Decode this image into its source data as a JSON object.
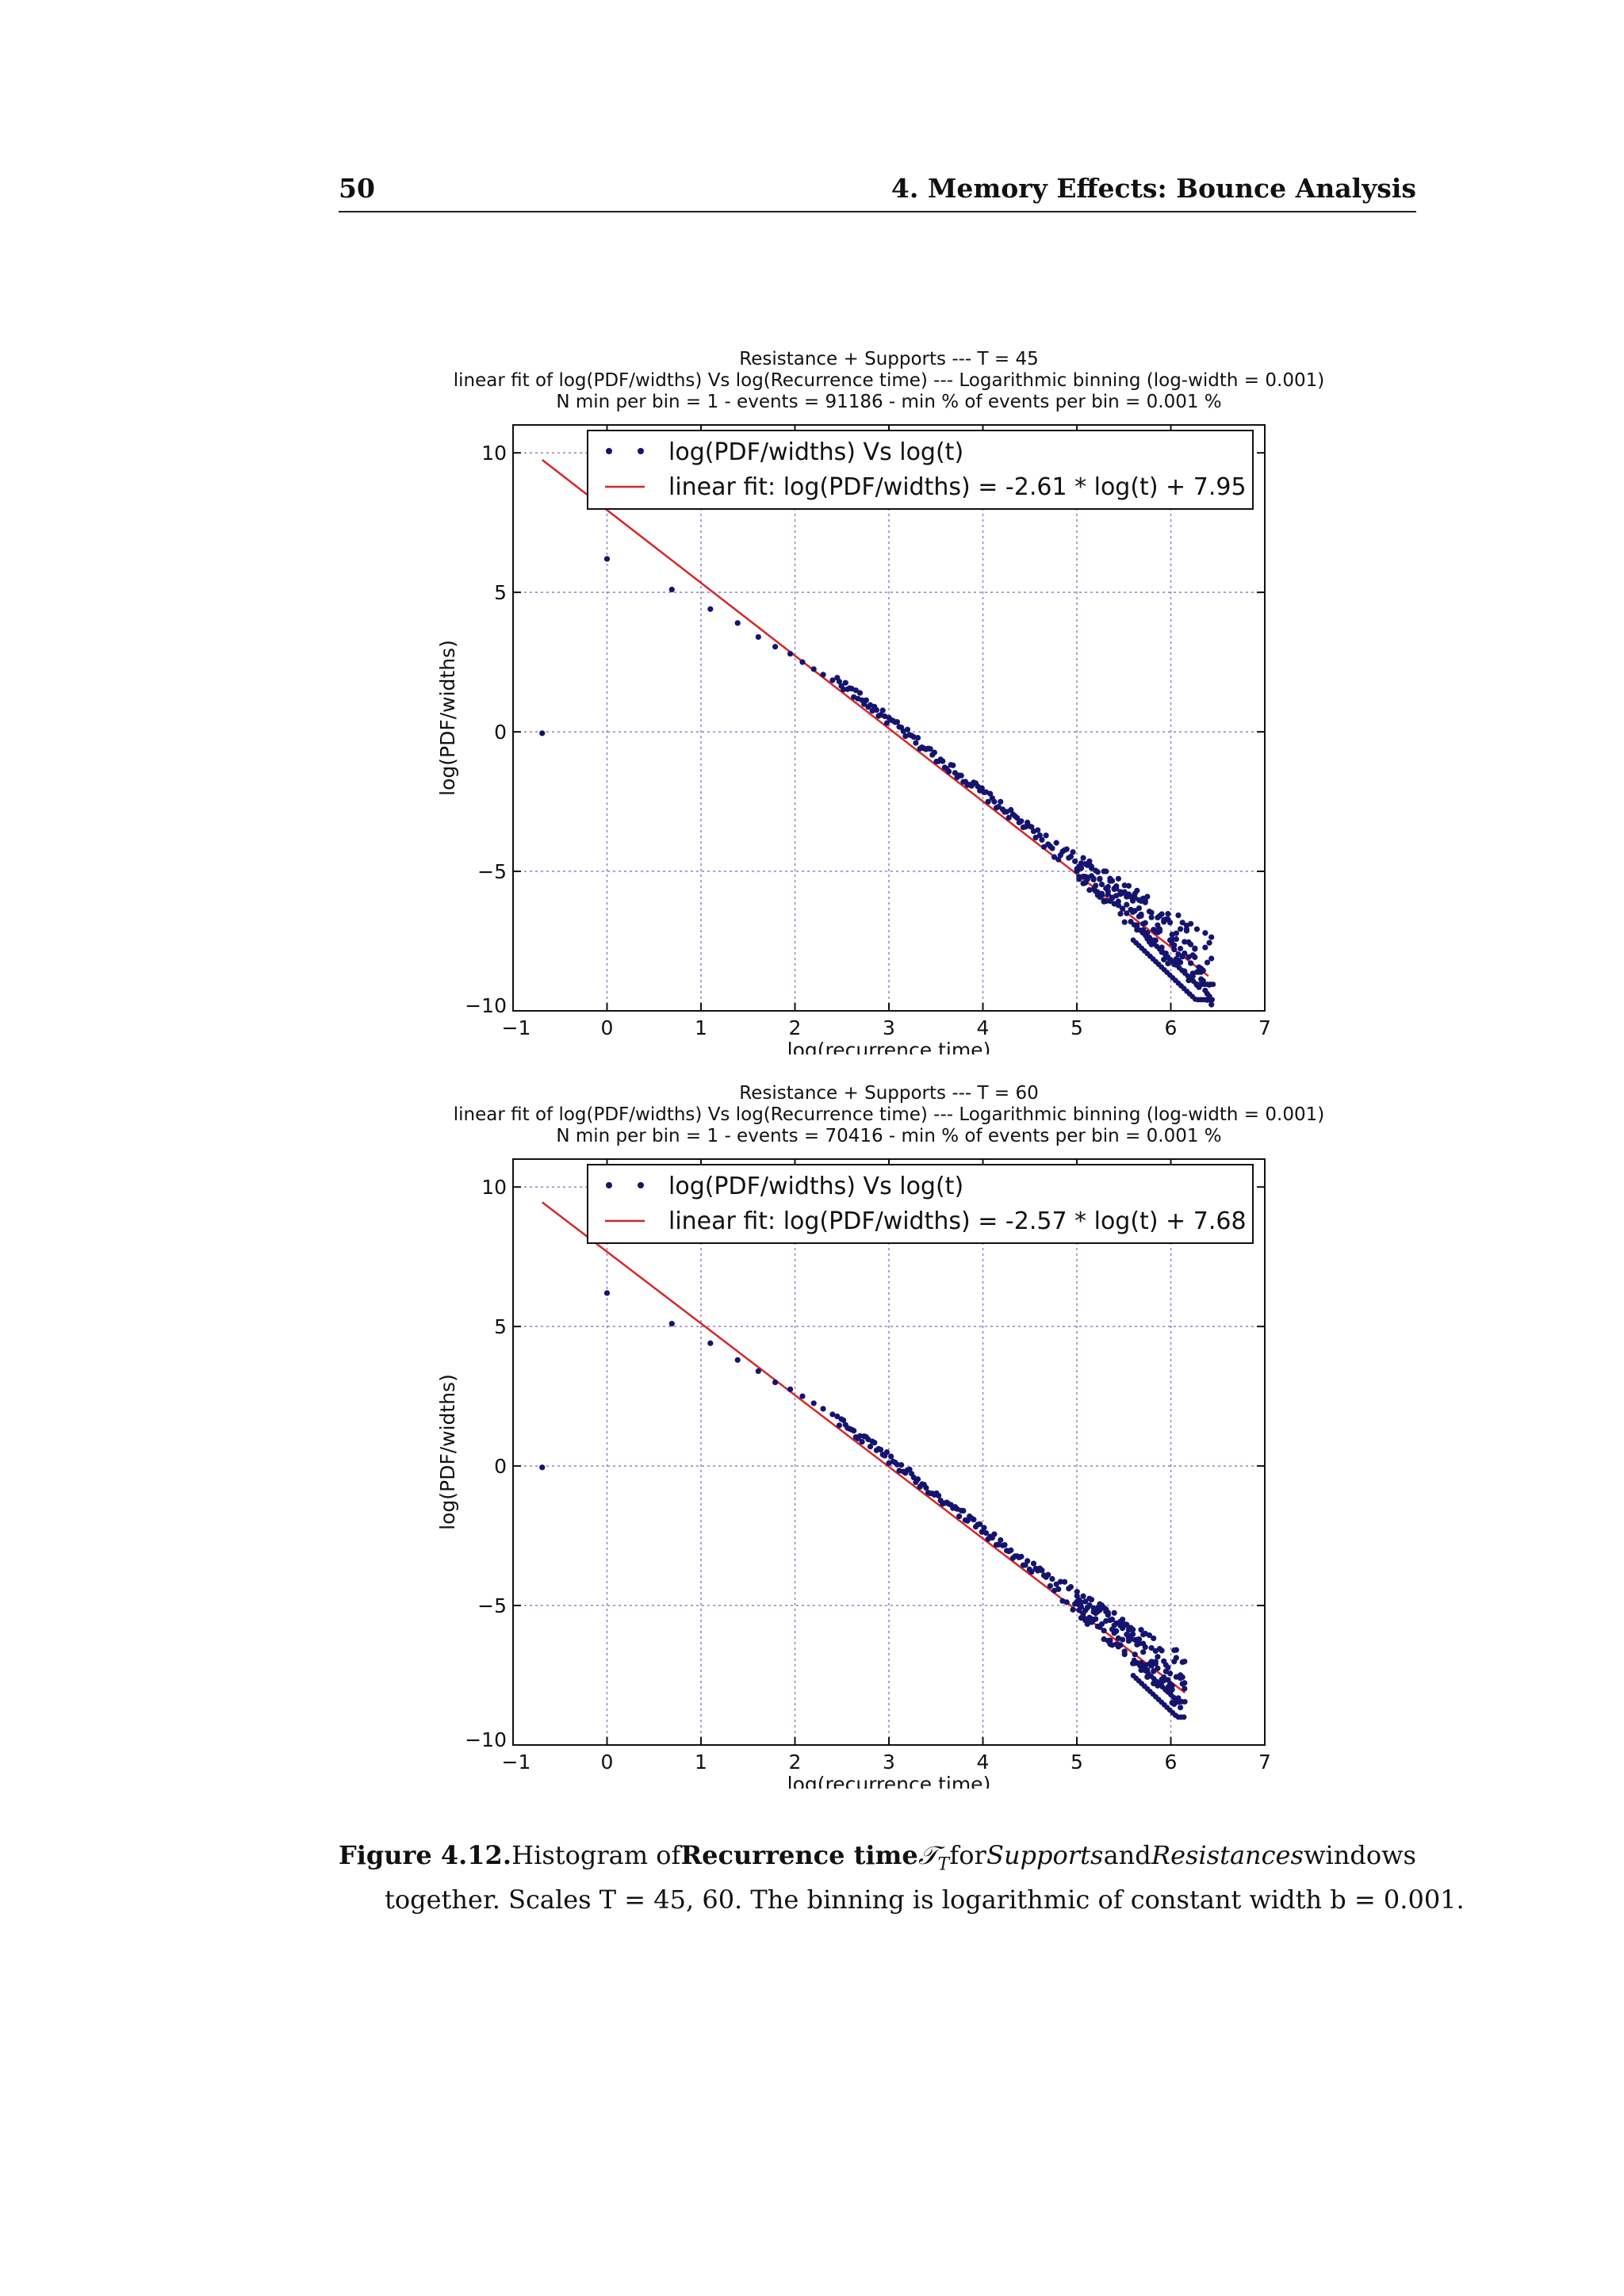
{
  "header": {
    "page_number": "50",
    "chapter_title": "4. Memory Effects: Bounce Analysis"
  },
  "caption": {
    "label": "Figure 4.12.",
    "text_1": "Histogram of",
    "bold_term": "Recurrence time",
    "symbol": "𝒯",
    "symbol_sub": "T",
    "text_2": "for",
    "ital_1": "Supports",
    "text_3": "and",
    "ital_2": "Resistances",
    "text_4": "windows",
    "line2": "together. Scales T = 45, 60. The binning is logarithmic of constant width b = 0.001."
  },
  "colors": {
    "points": "#14146e",
    "fit_line": "#d62728",
    "grid": "#9a7fc0"
  },
  "chart_data": [
    {
      "type": "scatter",
      "title_lines": [
        "Resistance + Supports --- T = 45",
        "linear fit of log(PDF/widths) Vs log(Recurrence time) --- Logarithmic binning (log-width = 0.001)",
        "N min per bin = 1 - events = 91186 - min % of events per bin = 0.001 %"
      ],
      "xlabel": "log(recurrence time)",
      "ylabel": "log(PDF/widths)",
      "xlim": [
        -1,
        7
      ],
      "ylim": [
        -10,
        11
      ],
      "xticks": [
        -1,
        0,
        1,
        2,
        3,
        4,
        5,
        6,
        7
      ],
      "xtick_labels": [
        "−1",
        "0",
        "1",
        "2",
        "3",
        "4",
        "5",
        "6",
        "7"
      ],
      "yticks": [
        -10,
        -5,
        0,
        5,
        10
      ],
      "ytick_labels": [
        "−10",
        "−5",
        "0",
        "5",
        "10"
      ],
      "grid": true,
      "legend_position": "top-right",
      "series": [
        {
          "name": "log(PDF/widths) Vs log(t)",
          "kind": "points",
          "x_max": 6.45,
          "lower_band_min": -9.6
        },
        {
          "name": "linear fit: log(PDF/widths) = -2.61 * log(t) + 7.95",
          "kind": "line",
          "slope": -2.61,
          "intercept": 7.95,
          "x_range": [
            -0.69,
            6.4
          ]
        }
      ],
      "points": [
        [
          -0.69,
          -0.05
        ],
        [
          0.0,
          6.2
        ],
        [
          0.69,
          5.1
        ],
        [
          1.1,
          4.4
        ],
        [
          1.39,
          3.9
        ],
        [
          1.61,
          3.4
        ],
        [
          1.79,
          3.05
        ],
        [
          1.95,
          2.8
        ],
        [
          2.08,
          2.5
        ],
        [
          2.2,
          2.25
        ],
        [
          2.3,
          2.05
        ],
        [
          2.4,
          1.85
        ]
      ]
    },
    {
      "type": "scatter",
      "title_lines": [
        "Resistance + Supports --- T = 60",
        "linear fit of log(PDF/widths) Vs log(Recurrence time) --- Logarithmic binning (log-width = 0.001)",
        "N min per bin = 1 - events = 70416 - min % of events per bin = 0.001 %"
      ],
      "xlabel": "log(recurrence time)",
      "ylabel": "log(PDF/widths)",
      "xlim": [
        -1,
        7
      ],
      "ylim": [
        -10,
        11
      ],
      "xticks": [
        -1,
        0,
        1,
        2,
        3,
        4,
        5,
        6,
        7
      ],
      "xtick_labels": [
        "−1",
        "0",
        "1",
        "2",
        "3",
        "4",
        "5",
        "6",
        "7"
      ],
      "yticks": [
        -10,
        -5,
        0,
        5,
        10
      ],
      "ytick_labels": [
        "−10",
        "−5",
        "0",
        "5",
        "10"
      ],
      "grid": true,
      "legend_position": "top-right",
      "series": [
        {
          "name": "log(PDF/widths) Vs log(t)",
          "kind": "points",
          "x_max": 6.15,
          "lower_band_min": -9.0
        },
        {
          "name": "linear fit: log(PDF/widths) = -2.57 * log(t) + 7.68",
          "kind": "line",
          "slope": -2.57,
          "intercept": 7.68,
          "x_range": [
            -0.69,
            6.15
          ]
        }
      ],
      "points": [
        [
          -0.69,
          -0.05
        ],
        [
          0.0,
          6.2
        ],
        [
          0.69,
          5.1
        ],
        [
          1.1,
          4.4
        ],
        [
          1.39,
          3.8
        ],
        [
          1.61,
          3.4
        ],
        [
          1.79,
          3.0
        ],
        [
          1.95,
          2.75
        ],
        [
          2.08,
          2.5
        ],
        [
          2.2,
          2.25
        ],
        [
          2.3,
          2.05
        ],
        [
          2.4,
          1.85
        ]
      ]
    }
  ]
}
